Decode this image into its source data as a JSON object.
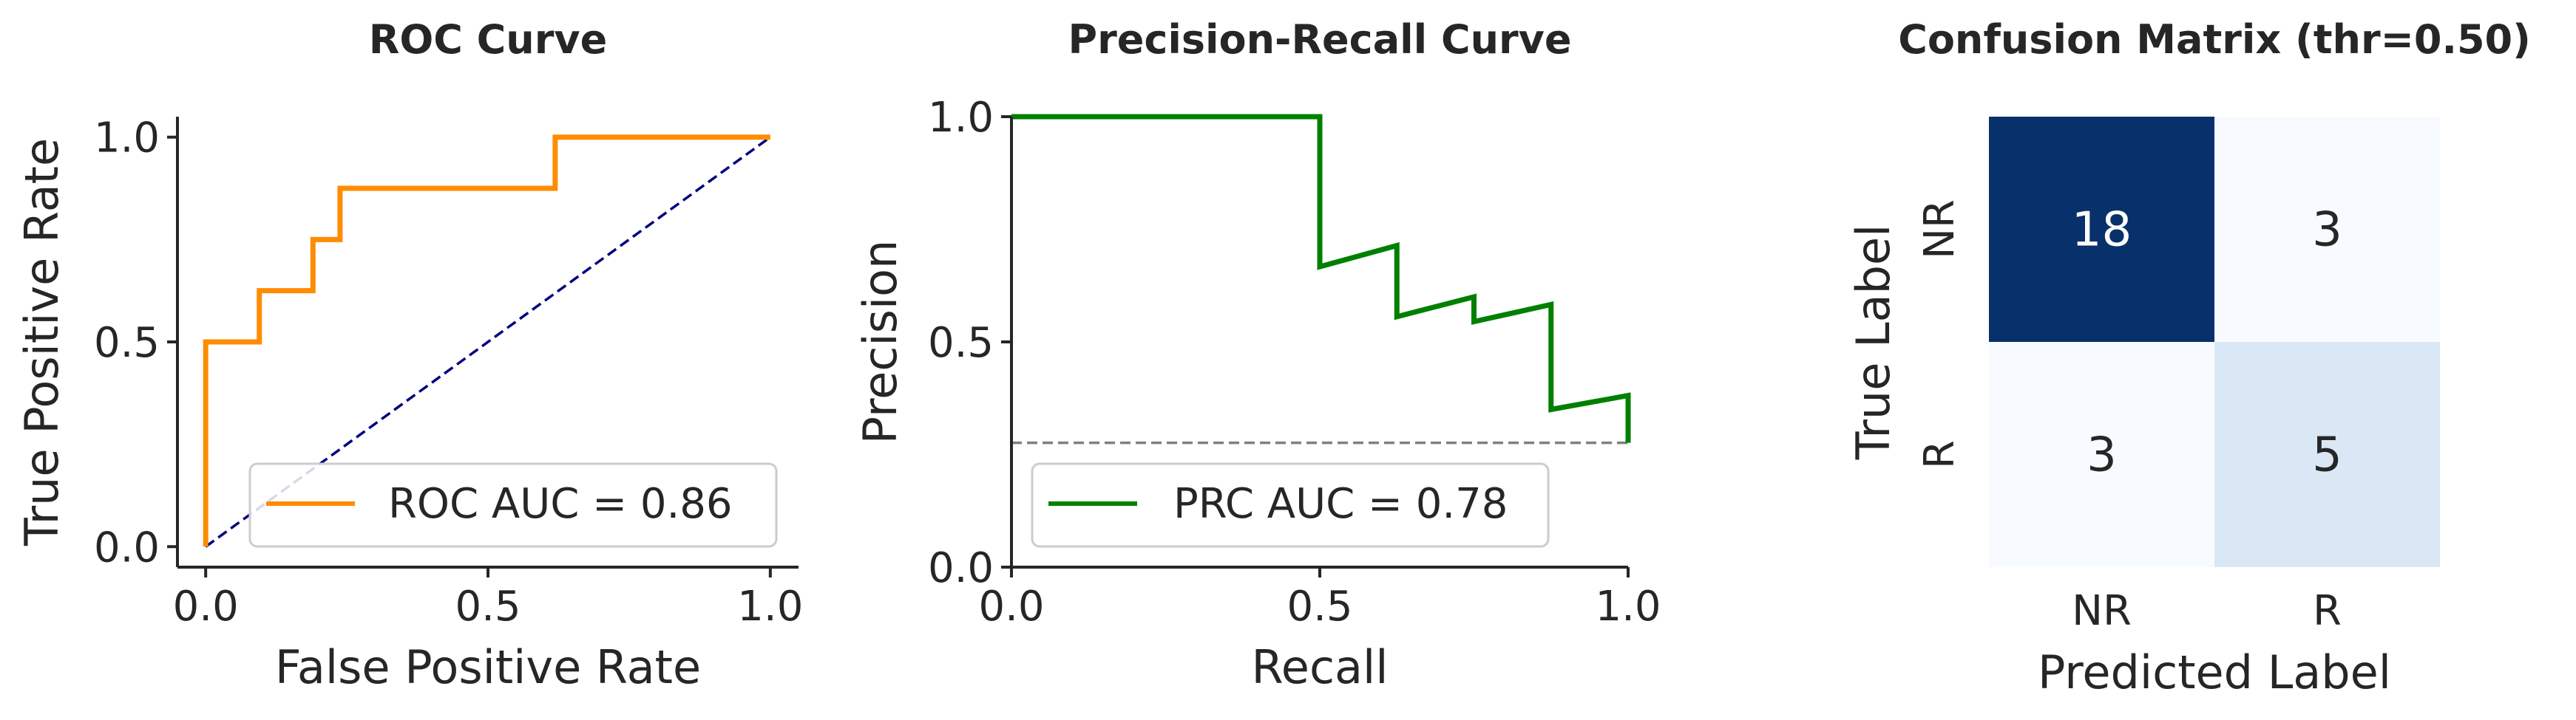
{
  "colors": {
    "roc": "#ff8c00",
    "pr": "#008000",
    "diag": "#000080",
    "baseline": "#808080",
    "text": "#262626",
    "cm_high": "#08306b",
    "cm_mid": "#dae8f5",
    "cm_low": "#f7fbff"
  },
  "chart_data": [
    {
      "type": "line",
      "title": "ROC Curve",
      "xlabel": "False Positive Rate",
      "ylabel": "True Positive Rate",
      "xlim": [
        -0.05,
        1.05
      ],
      "ylim": [
        -0.05,
        1.05
      ],
      "xticks": [
        "0.0",
        "0.5",
        "1.0"
      ],
      "yticks": [
        "0.0",
        "0.5",
        "1.0"
      ],
      "grid": false,
      "legend_position": "lower-right",
      "series": [
        {
          "name": "ROC AUC = 0.86",
          "x": [
            0.0,
            0.0,
            0.095,
            0.095,
            0.19,
            0.19,
            0.238,
            0.238,
            0.619,
            0.619,
            1.0
          ],
          "y": [
            0.0,
            0.5,
            0.5,
            0.625,
            0.625,
            0.75,
            0.75,
            0.875,
            0.875,
            1.0,
            1.0
          ]
        },
        {
          "x": [
            0,
            1
          ],
          "y": [
            0,
            1
          ],
          "style": "dashed"
        }
      ]
    },
    {
      "type": "line",
      "title": "Precision-Recall Curve",
      "xlabel": "Recall",
      "ylabel": "Precision",
      "xlim": [
        0,
        1
      ],
      "ylim": [
        0,
        1
      ],
      "xticks": [
        "0.0",
        "0.5",
        "1.0"
      ],
      "yticks": [
        "0.0",
        "0.5",
        "1.0"
      ],
      "grid": false,
      "legend_position": "lower-left",
      "series": [
        {
          "name": "PRC AUC = 0.78",
          "x": [
            0.0,
            0.5,
            0.5,
            0.625,
            0.625,
            0.75,
            0.75,
            0.875,
            0.875,
            1.0,
            1.0
          ],
          "y": [
            1.0,
            1.0,
            0.667,
            0.714,
            0.556,
            0.6,
            0.545,
            0.583,
            0.35,
            0.381,
            0.276
          ]
        },
        {
          "x": [
            0,
            1
          ],
          "y": [
            0.276,
            0.276
          ],
          "style": "dashed"
        }
      ]
    },
    {
      "type": "heatmap",
      "title": "Confusion Matrix (thr=0.50)",
      "xlabel": "Predicted Label",
      "ylabel": "True Label",
      "x_categories": [
        "NR",
        "R"
      ],
      "y_categories": [
        "NR",
        "R"
      ],
      "values": [
        [
          18,
          3
        ],
        [
          3,
          5
        ]
      ]
    }
  ]
}
